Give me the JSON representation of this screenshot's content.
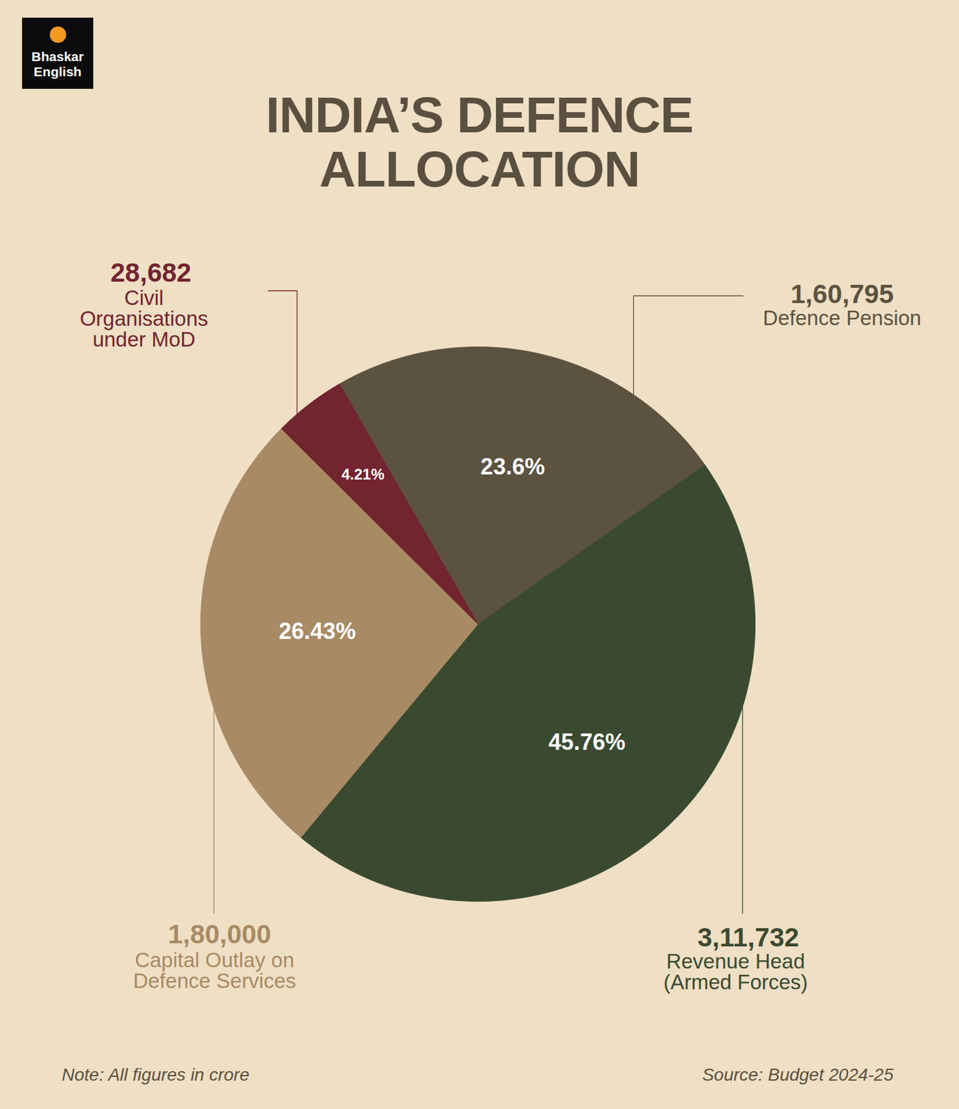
{
  "chart_data": {
    "type": "pie",
    "title": "INDIA’S DEFENCE ALLOCATION",
    "logo": [
      "Bhaskar",
      "English"
    ],
    "categories": [
      "Defence Pension",
      "Revenue Head (Armed Forces)",
      "Capital Outlay on Defence Services",
      "Civil Organisations under MoD"
    ],
    "values": [
      23.6,
      45.76,
      26.43,
      4.21
    ],
    "value_labels": [
      "23.6%",
      "45.76%",
      "26.43%",
      "4.21%"
    ],
    "amount_labels": [
      "1,60,795",
      "3,11,732",
      "1,80,000",
      "28,682"
    ],
    "colors": [
      "#5c5240",
      "#3a4a30",
      "#a88a64",
      "#722430"
    ],
    "data_labels": true,
    "note": "Note: All figures in crore",
    "source": "Source: Budget 2024-25"
  }
}
